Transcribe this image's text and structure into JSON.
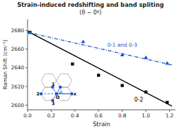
{
  "chart_data": {
    "type": "scatter",
    "title": "Strain-induced redshifting and band spliting",
    "subtitle": "(θ ∼ 0º)",
    "x_label": "Strain",
    "y_label": "Raman Shift (cm⁻¹)",
    "xlim": [
      0.0,
      1.25
    ],
    "ylim": [
      2595,
      2692
    ],
    "xticks": [
      {
        "value": 0.0,
        "label": "0.0"
      },
      0.2,
      0.4,
      0.6,
      0.8,
      {
        "value": 1.0,
        "label": "1.0"
      },
      1.2
    ],
    "yticks": [
      2600,
      2620,
      2640,
      2660,
      2680
    ],
    "grid": false,
    "series": [
      {
        "name": "0-2",
        "type": "scatter",
        "color": "#000000",
        "marker": "square",
        "x": [
          0.02,
          0.38,
          0.6,
          0.8,
          1.0,
          1.18
        ],
        "values": [
          2678,
          2644,
          2632,
          2621,
          2614,
          2603
        ]
      },
      {
        "type": "line",
        "color": "#000000",
        "line_style": "solid",
        "x": [
          0.0,
          1.22
        ],
        "values": [
          2679,
          2599
        ]
      },
      {
        "name": "0-1 and 0-3",
        "type": "scatter",
        "color": "#1a52cc",
        "marker": "triangle",
        "x": [
          0.02,
          0.47,
          0.8,
          1.0,
          1.18
        ],
        "values": [
          2678,
          2668,
          2654,
          2651,
          2645
        ]
      },
      {
        "type": "line",
        "color": "#1a52cc",
        "line_style": "dashdot",
        "x": [
          0.0,
          1.22
        ],
        "values": [
          2678,
          2643
        ]
      }
    ],
    "annotations": [
      "O",
      "1",
      "2",
      "3",
      "x",
      "θ"
    ]
  }
}
